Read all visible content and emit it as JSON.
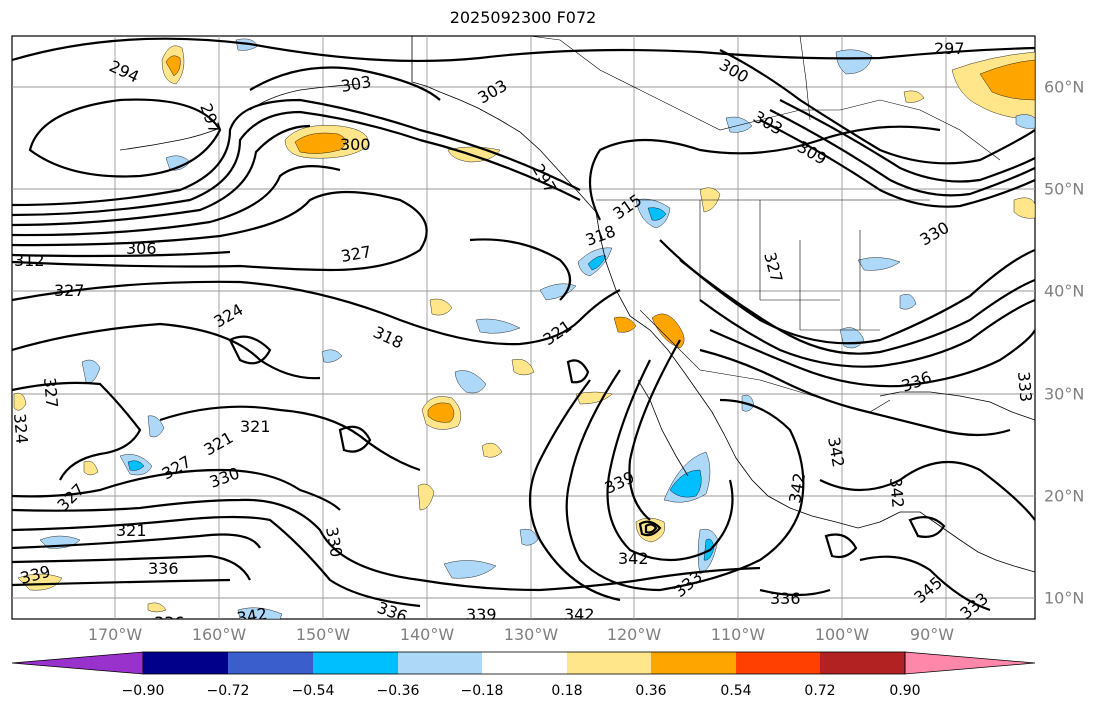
{
  "title": "2025092300 F072",
  "lon_labels": [
    "170°W",
    "160°W",
    "150°W",
    "140°W",
    "130°W",
    "120°W",
    "110°W",
    "100°W",
    "90°W"
  ],
  "lat_labels": [
    "60°N",
    "50°N",
    "40°N",
    "30°N",
    "20°N",
    "10°N"
  ],
  "contour_labels": [
    "294",
    "297",
    "303",
    "303",
    "300",
    "300",
    "303",
    "309",
    "297",
    "297",
    "312",
    "306",
    "327",
    "327",
    "318",
    "315",
    "327",
    "324",
    "318",
    "321",
    "327",
    "324",
    "330",
    "321",
    "321",
    "327",
    "327",
    "321",
    "330",
    "336",
    "339",
    "336",
    "342",
    "336",
    "339",
    "342",
    "339",
    "342",
    "333",
    "336",
    "342",
    "342",
    "342",
    "345",
    "333",
    "336",
    "333",
    "330",
    "315",
    "330"
  ],
  "colorbar": {
    "ticks": [
      "−0.90",
      "−0.72",
      "−0.54",
      "−0.36",
      "−0.18",
      "0.18",
      "0.36",
      "0.54",
      "0.72",
      "0.90"
    ],
    "colors": [
      "#9932cc",
      "#00008b",
      "#3a5fcd",
      "#00bfff",
      "#add8f7",
      "#ffffff",
      "#ffe68a",
      "#ffa500",
      "#ff4000",
      "#b22222",
      "#ff88aa"
    ]
  }
}
